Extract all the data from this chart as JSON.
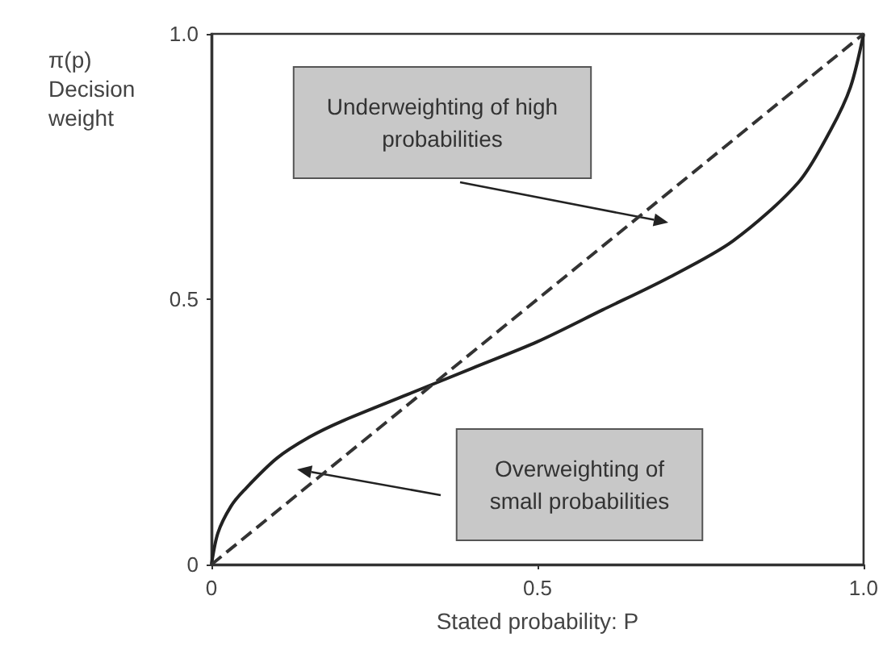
{
  "chart_data": {
    "type": "line",
    "xlabel": "Stated probability: P",
    "ylabel": "π(p)\nDecision\nweight",
    "series": [
      {
        "color": "#222222",
        "line_style": "solid",
        "x": [
          0,
          0.01,
          0.03,
          0.05,
          0.1,
          0.15,
          0.2,
          0.3,
          0.4,
          0.5,
          0.6,
          0.7,
          0.8,
          0.9,
          0.95,
          0.98,
          1
        ],
        "values": [
          0,
          0.06,
          0.11,
          0.14,
          0.2,
          0.24,
          0.27,
          0.32,
          0.37,
          0.42,
          0.48,
          0.54,
          0.61,
          0.72,
          0.82,
          0.9,
          1
        ]
      },
      {
        "color": "#333333",
        "line_style": "dashed",
        "x": [
          0,
          1
        ],
        "values": [
          0,
          1
        ]
      }
    ],
    "xlim": [
      0,
      1
    ],
    "ylim": [
      0,
      1
    ],
    "xticks": [
      0,
      0.5,
      {
        "value": 1,
        "label": "1.0"
      }
    ],
    "yticks": [
      0,
      0.5,
      {
        "value": 1,
        "label": "1.0"
      }
    ],
    "grid": false,
    "marker": "none",
    "annotations": [
      "Underweighting of high\nprobabilities",
      "Overweighting of\nsmall probabilities"
    ]
  }
}
